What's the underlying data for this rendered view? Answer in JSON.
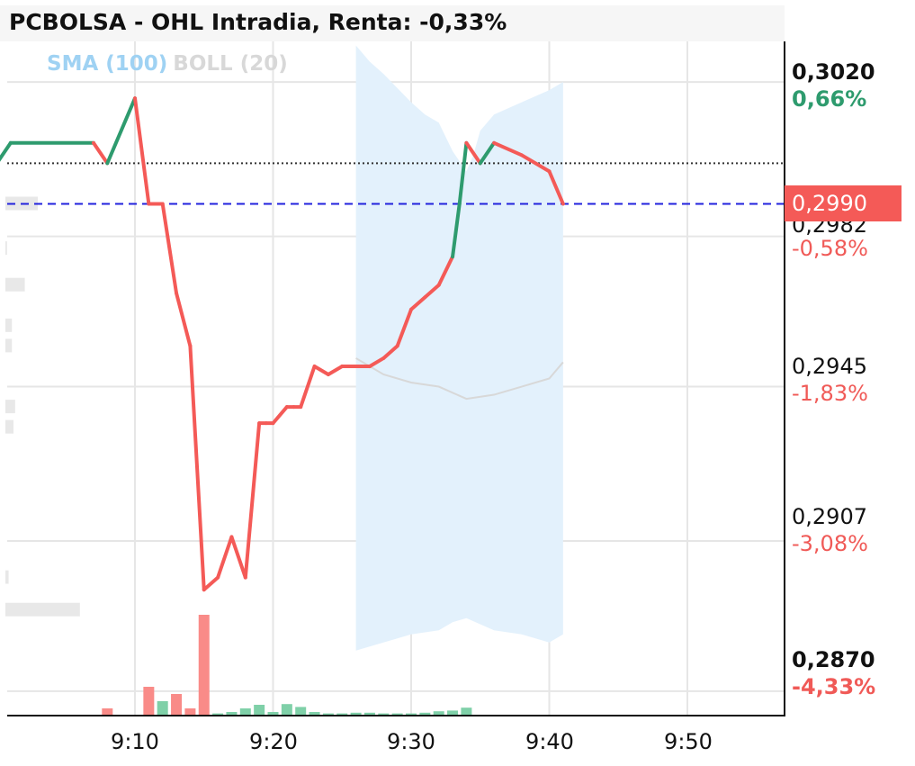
{
  "header": {
    "title": "PCBOLSA - OHL Intradia, Renta: -0,33%"
  },
  "legend": {
    "sma": "SMA (100)",
    "boll": "BOLL (20)"
  },
  "price_badge": {
    "label": "0,2990"
  },
  "y_axis": {
    "labels": [
      {
        "price": "0,3020",
        "pct": "0,66%",
        "bold": true,
        "pct_color": "#2e9b6e"
      },
      {
        "price": "0,2982",
        "pct": "-0,58%",
        "bold": false,
        "pct_color": "#f05a57"
      },
      {
        "price": "0,2945",
        "pct": "-1,83%",
        "bold": false,
        "pct_color": "#f05a57"
      },
      {
        "price": "0,2907",
        "pct": "-3,08%",
        "bold": false,
        "pct_color": "#f05a57"
      },
      {
        "price": "0,2870",
        "pct": "-4,33%",
        "bold": true,
        "pct_color": "#f05a57"
      }
    ]
  },
  "x_axis": {
    "ticks": [
      "9:10",
      "9:20",
      "9:30",
      "9:40",
      "9:50"
    ]
  },
  "colors": {
    "up": "#2e9b6e",
    "down": "#f45a57",
    "boll_band": "#e3f1fc",
    "sma": "#d8d8d8",
    "reference_line": "#2222dd",
    "previous_close_line": "#333333"
  },
  "chart_data": {
    "type": "line",
    "title": "PCBOLSA - OHL Intradia, Renta: -0,33%",
    "xlabel": "",
    "ylabel": "",
    "ylim": [
      0.2864,
      0.303
    ],
    "x_ticks": [
      "9:10",
      "9:20",
      "9:30",
      "9:40",
      "9:50"
    ],
    "y_ticks": [
      "0,2870",
      "0,2907",
      "0,2945",
      "0,2982",
      "0,3020"
    ],
    "reference_lines": [
      {
        "style": "dotted",
        "value": 0.3
      },
      {
        "style": "dashed",
        "value": 0.299
      }
    ],
    "series": [
      {
        "name": "price",
        "minutes": [
          0,
          1,
          7,
          8,
          10,
          11,
          12,
          13,
          14,
          15,
          16,
          17,
          18,
          19,
          19.5,
          20,
          21,
          21.5,
          22,
          23,
          24,
          25,
          26,
          27,
          28,
          29,
          30,
          31,
          32,
          33,
          33.5,
          34,
          35,
          36,
          38,
          40,
          41
        ],
        "values": [
          0.3,
          0.3005,
          0.3005,
          0.3,
          0.3016,
          0.299,
          0.299,
          0.2968,
          0.2955,
          0.2895,
          0.2898,
          0.2908,
          0.2898,
          0.2936,
          0.2936,
          0.2936,
          0.294,
          0.294,
          0.294,
          0.295,
          0.2948,
          0.295,
          0.295,
          0.295,
          0.2952,
          0.2955,
          0.2964,
          0.2967,
          0.297,
          0.2977,
          0.299,
          0.3005,
          0.3,
          0.3005,
          0.3002,
          0.2998,
          0.299
        ],
        "direction": [
          "up",
          "up",
          "down",
          "up",
          "down",
          "down",
          "down",
          "down",
          "down",
          "down",
          "down",
          "down",
          "down",
          "down",
          "down",
          "down",
          "down",
          "down",
          "down",
          "down",
          "down",
          "down",
          "down",
          "down",
          "down",
          "down",
          "down",
          "down",
          "down",
          "up",
          "up",
          "down",
          "up",
          "down",
          "down",
          "down"
        ]
      },
      {
        "name": "boll_upper",
        "minutes": [
          26,
          27,
          28,
          30,
          31,
          32,
          33,
          34,
          34.5,
          35,
          36,
          38,
          40,
          41
        ],
        "values": [
          0.3029,
          0.3025,
          0.3022,
          0.3015,
          0.3012,
          0.301,
          0.3003,
          0.2998,
          0.3002,
          0.3008,
          0.3012,
          0.3015,
          0.3018,
          0.302
        ]
      },
      {
        "name": "boll_lower",
        "minutes": [
          26,
          27,
          28,
          30,
          32,
          33,
          34,
          36,
          38,
          40,
          41
        ],
        "values": [
          0.288,
          0.2881,
          0.2882,
          0.2884,
          0.2885,
          0.2887,
          0.2888,
          0.2885,
          0.2884,
          0.2882,
          0.2884
        ]
      },
      {
        "name": "sma",
        "minutes": [
          26,
          28,
          30,
          32,
          34,
          36,
          38,
          40,
          41
        ],
        "values": [
          0.2952,
          0.2948,
          0.2946,
          0.2945,
          0.2942,
          0.2943,
          0.2945,
          0.2947,
          0.2951
        ]
      }
    ],
    "volume": {
      "minutes": [
        8,
        11,
        12,
        13,
        14,
        15,
        16,
        17,
        18,
        19,
        20,
        21,
        22,
        23,
        24,
        25,
        26,
        27,
        28,
        29,
        30,
        31,
        32,
        33,
        34
      ],
      "values": [
        1,
        4,
        2,
        3,
        1,
        14,
        0.3,
        0.5,
        1,
        1.5,
        0.5,
        1.6,
        1.2,
        0.5,
        0.3,
        0.3,
        0.4,
        0.4,
        0.3,
        0.3,
        0.3,
        0.4,
        0.6,
        0.7,
        1.1
      ],
      "direction": [
        "down",
        "down",
        "up",
        "down",
        "down",
        "down",
        "up",
        "up",
        "up",
        "up",
        "up",
        "up",
        "up",
        "up",
        "up",
        "up",
        "up",
        "up",
        "up",
        "up",
        "up",
        "up",
        "up",
        "up",
        "up"
      ]
    },
    "depth_bars": [
      {
        "price": 0.299,
        "size": 1.0
      },
      {
        "price": 0.2979,
        "size": 0.05
      },
      {
        "price": 0.297,
        "size": 0.6
      },
      {
        "price": 0.296,
        "size": 0.2
      },
      {
        "price": 0.2955,
        "size": 0.2
      },
      {
        "price": 0.294,
        "size": 0.3
      },
      {
        "price": 0.2935,
        "size": 0.25
      },
      {
        "price": 0.2898,
        "size": 0.1
      },
      {
        "price": 0.289,
        "size": 2.3
      }
    ]
  }
}
